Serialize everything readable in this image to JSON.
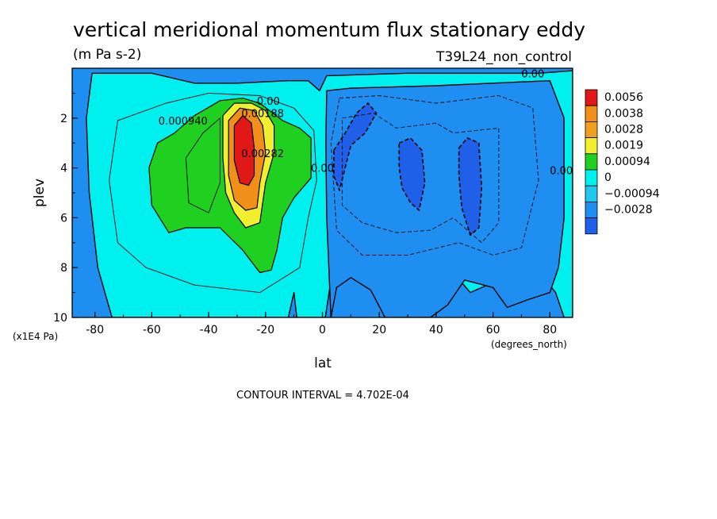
{
  "header": {
    "title": "vertical meridional momentum flux stationary eddy",
    "units": "(m Pa s-2)",
    "dataset": "T39L24_non_control"
  },
  "footer": {
    "contour_interval": "CONTOUR INTERVAL = 4.702E-04"
  },
  "colors": {
    "c_lt_m0028": "#2060e8",
    "c_m0028_m00094": "#1e8ff0",
    "c_m00094_0": "#20c8f0",
    "c_0_00094": "#00f0f0",
    "c_00094_0019": "#20d020",
    "c_0019_0028": "#f0f030",
    "c_0028_0038": "#f0a020",
    "c_0038_0056": "#f09018",
    "c_gt_0056": "#e01818"
  },
  "contour_labels": [
    {
      "text": "0.00",
      "lat": 74,
      "plev": 0.2
    },
    {
      "text": "0.00",
      "lat": -19,
      "plev": 1.3
    },
    {
      "text": "0.000940",
      "lat": -49,
      "plev": 2.1
    },
    {
      "text": "0.00188",
      "lat": -21,
      "plev": 1.8
    },
    {
      "text": "0.00282",
      "lat": -21,
      "plev": 3.4
    },
    {
      "text": "0.00",
      "lat": 0,
      "plev": 4.0
    },
    {
      "text": "0.00",
      "lat": 84,
      "plev": 4.1
    }
  ],
  "chart_data": {
    "type": "contour",
    "title": "vertical meridional momentum flux stationary eddy",
    "subtitle": "(m Pa s-2)",
    "dataset": "T39L24_non_control",
    "xlabel": "lat",
    "x_units": "(degrees_north)",
    "ylabel": "plev",
    "y_units": "(x1E4 Pa)",
    "xlim": [
      -88,
      88
    ],
    "ylim": [
      10,
      0
    ],
    "x_ticks": [
      -80,
      -60,
      -40,
      -20,
      0,
      20,
      40,
      60,
      80
    ],
    "x_tick_labels": [
      "-80",
      "-60",
      "-40",
      "-20",
      "0",
      "20",
      "40",
      "60",
      "80"
    ],
    "y_ticks": [
      2,
      4,
      6,
      8,
      10
    ],
    "y_tick_labels": [
      "2",
      "4",
      "6",
      "8",
      "10"
    ],
    "colorbar_levels": [
      "0.0056",
      "0.0038",
      "0.0028",
      "0.0019",
      "0.00094",
      "0",
      "−0.00094",
      "−0.0028"
    ],
    "contour_interval": 0.0004702,
    "features": [
      {
        "name": "positive maximum",
        "lat": -27,
        "plev": 3.2,
        "value": 0.0056
      },
      {
        "name": "negative core 1",
        "lat": 12,
        "plev": 2.5,
        "value": -0.0028
      },
      {
        "name": "negative core 2",
        "lat": 31,
        "plev": 3.8,
        "value": -0.0028
      },
      {
        "name": "negative core 3",
        "lat": 52,
        "plev": 4.5,
        "value": -0.0028
      }
    ]
  }
}
